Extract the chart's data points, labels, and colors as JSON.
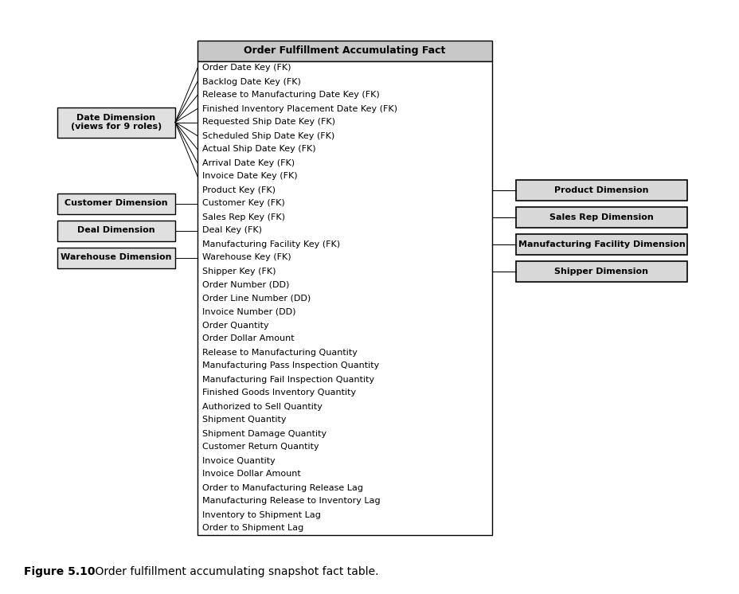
{
  "title": "Order Fulfillment Accumulating Fact",
  "fact_table_items": [
    "Order Date Key (FK)",
    "Backlog Date Key (FK)",
    "Release to Manufacturing Date Key (FK)",
    "Finished Inventory Placement Date Key (FK)",
    "Requested Ship Date Key (FK)",
    "Scheduled Ship Date Key (FK)",
    "Actual Ship Date Key (FK)",
    "Arrival Date Key (FK)",
    "Invoice Date Key (FK)",
    "Product Key (FK)",
    "Customer Key (FK)",
    "Sales Rep Key (FK)",
    "Deal Key (FK)",
    "Manufacturing Facility Key (FK)",
    "Warehouse Key (FK)",
    "Shipper Key (FK)",
    "Order Number (DD)",
    "Order Line Number (DD)",
    "Invoice Number (DD)",
    "Order Quantity",
    "Order Dollar Amount",
    "Release to Manufacturing Quantity",
    "Manufacturing Pass Inspection Quantity",
    "Manufacturing Fail Inspection Quantity",
    "Finished Goods Inventory Quantity",
    "Authorized to Sell Quantity",
    "Shipment Quantity",
    "Shipment Damage Quantity",
    "Customer Return Quantity",
    "Invoice Quantity",
    "Invoice Dollar Amount",
    "Order to Manufacturing Release Lag",
    "Manufacturing Release to Inventory Lag",
    "Inventory to Shipment Lag",
    "Order to Shipment Lag"
  ],
  "left_boxes": [
    {
      "label": "Date Dimension\n(views for 9 roles)",
      "rows": [
        0,
        1,
        2,
        3,
        4,
        5,
        6,
        7,
        8
      ],
      "bold": true
    },
    {
      "label": "Customer Dimension",
      "rows": [
        10
      ],
      "bold": true
    },
    {
      "label": "Deal Dimension",
      "rows": [
        12
      ],
      "bold": true
    },
    {
      "label": "Warehouse Dimension",
      "rows": [
        14
      ],
      "bold": true
    }
  ],
  "right_boxes": [
    {
      "label": "Product Dimension",
      "row": 9
    },
    {
      "label": "Sales Rep Dimension",
      "row": 11
    },
    {
      "label": "Manufacturing Facility Dimension",
      "row": 13
    },
    {
      "label": "Shipper Dimension",
      "row": 15
    }
  ],
  "caption_bold": "Figure 5.10",
  "caption_normal": "    Order fulfillment accumulating snapshot fact table.",
  "bg_color": "#ffffff",
  "header_fill": "#c8c8c8",
  "body_fill": "#ffffff",
  "left_fill": "#e0e0e0",
  "right_fill": "#d8d8d8",
  "font_size": 8.0,
  "header_font_size": 9.0,
  "caption_font_size": 10.0
}
